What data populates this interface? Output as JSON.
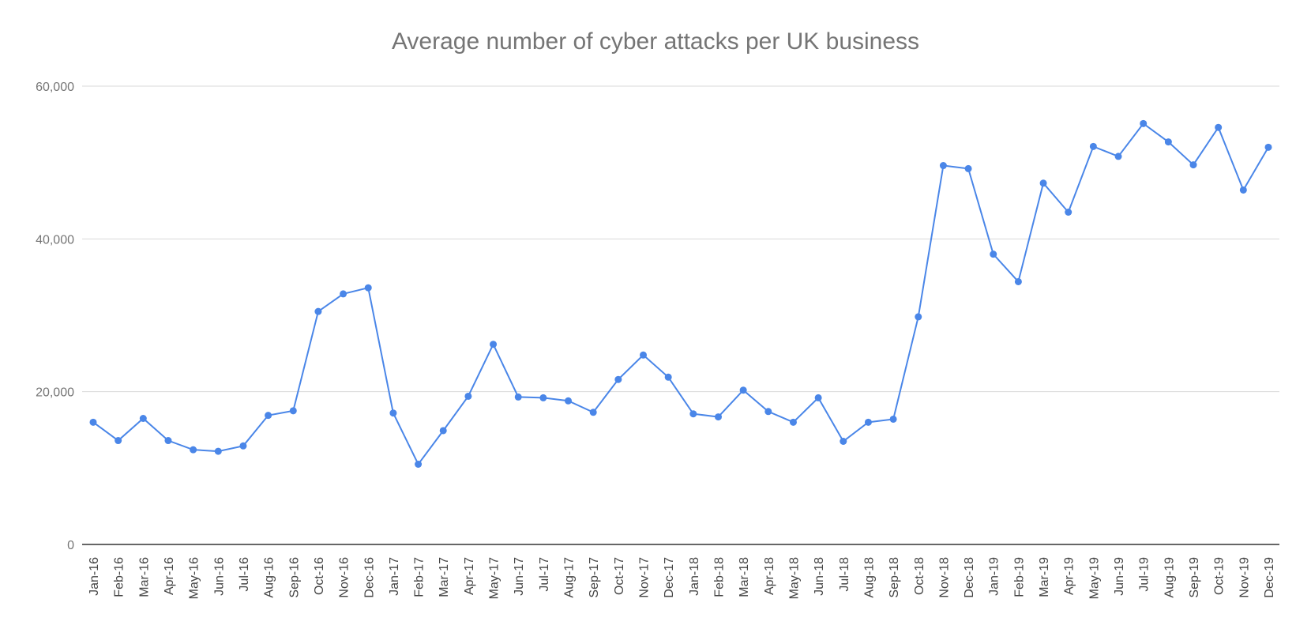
{
  "chart_data": {
    "type": "line",
    "title": "Average number of cyber attacks per UK business",
    "xlabel": "",
    "ylabel": "",
    "ylim": [
      0,
      60000
    ],
    "y_ticks": [
      {
        "value": 0,
        "label": "0"
      },
      {
        "value": 20000,
        "label": "20,000"
      },
      {
        "value": 40000,
        "label": "40,000"
      },
      {
        "value": 60000,
        "label": "60,000"
      }
    ],
    "grid": true,
    "legend": "none",
    "colors": {
      "series": "#4a86e8",
      "gridline": "#d9d9d9",
      "baseline": "#333333"
    },
    "categories": [
      "Jan-16",
      "Feb-16",
      "Mar-16",
      "Apr-16",
      "May-16",
      "Jun-16",
      "Jul-16",
      "Aug-16",
      "Sep-16",
      "Oct-16",
      "Nov-16",
      "Dec-16",
      "Jan-17",
      "Feb-17",
      "Mar-17",
      "Apr-17",
      "May-17",
      "Jun-17",
      "Jul-17",
      "Aug-17",
      "Sep-17",
      "Oct-17",
      "Nov-17",
      "Dec-17",
      "Jan-18",
      "Feb-18",
      "Mar-18",
      "Apr-18",
      "May-18",
      "Jun-18",
      "Jul-18",
      "Aug-18",
      "Sep-18",
      "Oct-18",
      "Nov-18",
      "Dec-18",
      "Jan-19",
      "Feb-19",
      "Mar-19",
      "Apr-19",
      "May-19",
      "Jun-19",
      "Jul-19",
      "Aug-19",
      "Sep-19",
      "Oct-19",
      "Nov-19",
      "Dec-19"
    ],
    "series": [
      {
        "values": [
          16000,
          13600,
          16500,
          13600,
          12400,
          12200,
          12900,
          16900,
          17500,
          30500,
          32800,
          33600,
          17200,
          10500,
          14900,
          19400,
          26200,
          19300,
          19200,
          18800,
          17300,
          21600,
          24800,
          21900,
          17100,
          16700,
          20200,
          17400,
          16000,
          19200,
          13500,
          16000,
          16400,
          29800,
          49600,
          49200,
          38000,
          34400,
          47300,
          43500,
          52100,
          50800,
          55100,
          52700,
          49700,
          54600,
          46400,
          52000
        ]
      }
    ]
  }
}
